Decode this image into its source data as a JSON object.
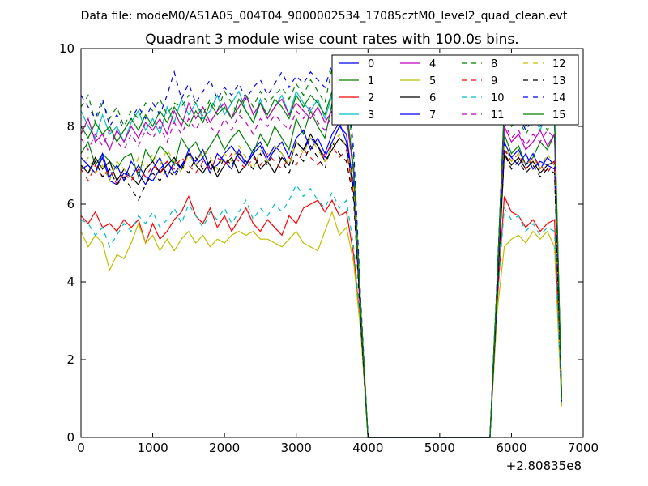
{
  "chart_data": {
    "type": "line",
    "suptitle": "Data file: modeM0/AS1A05_004T04_9000002534_17085cztM0_level2_quad_clean.evt",
    "title": "Quadrant 3 module wise count rates with 100.0s bins.",
    "xlabel": "",
    "ylabel": "",
    "x_offset_label": "+2.80835e8",
    "xlim": [
      0,
      7000
    ],
    "ylim": [
      0,
      10
    ],
    "xticks": [
      0,
      1000,
      2000,
      3000,
      4000,
      5000,
      6000,
      7000
    ],
    "yticks": [
      0,
      2,
      4,
      6,
      8,
      10
    ],
    "xtick_labels": [
      "0",
      "1000",
      "2000",
      "3000",
      "4000",
      "5000",
      "6000",
      "7000"
    ],
    "ytick_labels": [
      "0",
      "2",
      "4",
      "6",
      "8",
      "10"
    ],
    "grid": false,
    "legend_position": "top-right",
    "legend_columns": 4,
    "x": [
      0,
      100,
      200,
      300,
      400,
      500,
      600,
      700,
      800,
      900,
      1000,
      1100,
      1200,
      1300,
      1400,
      1500,
      1600,
      1700,
      1800,
      1900,
      2000,
      2100,
      2200,
      2300,
      2400,
      2500,
      2600,
      2700,
      2800,
      2900,
      3000,
      3100,
      3200,
      3300,
      3400,
      3500,
      3600,
      3700,
      3800,
      3900,
      4000,
      5700,
      5800,
      5900,
      6000,
      6100,
      6200,
      6300,
      6400,
      6500,
      6600,
      6700
    ],
    "series": [
      {
        "name": "0",
        "color": "#0000ff",
        "dashed": false,
        "values": [
          6.9,
          7.0,
          6.8,
          7.2,
          6.6,
          6.5,
          6.8,
          6.7,
          7.0,
          6.7,
          6.6,
          6.9,
          7.1,
          6.8,
          7.0,
          7.3,
          7.1,
          7.4,
          6.9,
          7.0,
          7.3,
          7.5,
          7.2,
          7.0,
          7.4,
          7.6,
          7.2,
          7.5,
          7.3,
          7.0,
          7.6,
          7.4,
          7.7,
          7.5,
          7.2,
          7.6,
          8.0,
          7.8,
          6.4,
          3.1,
          0,
          0,
          3.8,
          7.4,
          7.2,
          7.0,
          7.3,
          6.9,
          7.1,
          7.0,
          6.9,
          0.9
        ]
      },
      {
        "name": "1",
        "color": "#008000",
        "dashed": false,
        "values": [
          7.3,
          7.6,
          7.0,
          7.3,
          7.1,
          6.9,
          7.2,
          7.3,
          6.7,
          7.4,
          7.1,
          7.5,
          7.3,
          7.0,
          7.7,
          7.4,
          7.6,
          7.2,
          7.5,
          7.8,
          7.4,
          7.7,
          7.9,
          7.6,
          7.3,
          7.8,
          7.5,
          8.0,
          7.7,
          7.4,
          8.2,
          7.8,
          8.4,
          8.0,
          7.7,
          8.6,
          8.1,
          8.3,
          6.8,
          3.2,
          0,
          0,
          3.9,
          7.8,
          7.3,
          7.5,
          7.0,
          7.2,
          7.6,
          7.4,
          7.8,
          1.0
        ]
      },
      {
        "name": "2",
        "color": "#ff0000",
        "dashed": false,
        "values": [
          5.7,
          5.5,
          5.8,
          5.4,
          5.5,
          5.3,
          5.6,
          5.4,
          5.6,
          5.0,
          5.5,
          5.1,
          5.3,
          5.6,
          5.8,
          6.2,
          5.7,
          5.5,
          5.9,
          5.4,
          5.7,
          5.3,
          5.6,
          5.9,
          5.5,
          5.3,
          5.6,
          5.4,
          5.2,
          5.7,
          5.5,
          5.9,
          6.0,
          6.1,
          5.8,
          6.1,
          5.7,
          5.8,
          4.7,
          2.8,
          0,
          0,
          3.4,
          6.2,
          5.8,
          5.7,
          5.4,
          5.6,
          5.3,
          5.5,
          5.6,
          0.9
        ]
      },
      {
        "name": "3",
        "color": "#00bfbf",
        "dashed": false,
        "values": [
          8.4,
          8.0,
          7.7,
          8.3,
          7.8,
          8.0,
          7.6,
          8.1,
          8.4,
          7.9,
          8.2,
          7.8,
          8.5,
          8.1,
          8.7,
          8.3,
          8.6,
          8.2,
          8.4,
          8.8,
          8.3,
          8.6,
          8.9,
          8.4,
          8.1,
          8.7,
          8.2,
          8.5,
          8.8,
          8.3,
          8.9,
          8.6,
          8.4,
          8.7,
          8.2,
          8.8,
          8.5,
          8.3,
          6.9,
          3.3,
          0,
          0,
          4.0,
          8.6,
          8.2,
          8.4,
          8.0,
          8.3,
          7.9,
          8.4,
          8.1,
          1.0
        ]
      },
      {
        "name": "4",
        "color": "#bf00bf",
        "dashed": false,
        "values": [
          7.8,
          8.2,
          7.6,
          7.8,
          7.4,
          7.9,
          7.6,
          8.0,
          7.7,
          8.1,
          7.9,
          8.2,
          7.8,
          8.4,
          8.0,
          8.6,
          8.2,
          8.5,
          8.1,
          8.4,
          8.6,
          8.2,
          8.5,
          8.8,
          8.3,
          8.6,
          8.2,
          8.5,
          8.7,
          8.3,
          8.6,
          8.4,
          8.2,
          8.5,
          8.1,
          8.4,
          8.7,
          8.3,
          6.8,
          3.2,
          0,
          0,
          3.9,
          8.0,
          7.6,
          7.8,
          7.4,
          7.6,
          7.9,
          7.5,
          7.8,
          1.0
        ]
      },
      {
        "name": "5",
        "color": "#bfbf00",
        "dashed": false,
        "values": [
          5.3,
          4.9,
          5.2,
          5.0,
          4.3,
          4.7,
          4.6,
          5.0,
          5.5,
          5.0,
          5.2,
          4.8,
          5.1,
          4.8,
          5.1,
          5.3,
          5.0,
          5.2,
          4.9,
          5.1,
          5.0,
          5.2,
          5.3,
          5.2,
          5.3,
          5.1,
          5.1,
          5.0,
          4.9,
          5.1,
          5.3,
          5.0,
          4.9,
          4.8,
          5.3,
          5.8,
          5.2,
          5.4,
          4.5,
          2.7,
          0,
          0,
          3.2,
          4.9,
          5.1,
          5.2,
          5.0,
          5.3,
          5.1,
          5.3,
          4.9,
          0.8
        ]
      },
      {
        "name": "6",
        "color": "#000000",
        "dashed": false,
        "values": [
          7.0,
          6.8,
          7.2,
          6.9,
          7.1,
          6.6,
          6.9,
          6.7,
          6.5,
          6.9,
          7.1,
          6.8,
          7.0,
          7.2,
          6.9,
          7.3,
          7.0,
          6.8,
          7.1,
          6.7,
          7.0,
          7.2,
          6.8,
          7.0,
          7.3,
          6.9,
          7.1,
          6.8,
          7.2,
          7.0,
          7.6,
          7.4,
          7.8,
          7.5,
          7.1,
          7.4,
          7.7,
          7.5,
          6.3,
          3.0,
          0,
          0,
          3.6,
          7.3,
          7.0,
          7.2,
          6.9,
          7.1,
          6.8,
          7.0,
          7.1,
          1.0
        ]
      },
      {
        "name": "7",
        "color": "#0000ff",
        "dashed": false,
        "values": [
          7.2,
          7.0,
          6.8,
          7.3,
          6.7,
          7.0,
          6.6,
          7.1,
          6.8,
          6.5,
          6.9,
          7.2,
          6.7,
          7.1,
          6.9,
          7.4,
          7.0,
          7.2,
          6.8,
          7.3,
          7.1,
          6.9,
          7.4,
          7.0,
          7.3,
          7.5,
          7.1,
          7.4,
          7.6,
          7.2,
          7.7,
          7.9,
          7.4,
          7.7,
          7.3,
          7.8,
          8.1,
          7.6,
          6.5,
          3.1,
          0,
          0,
          3.7,
          7.6,
          7.2,
          7.4,
          7.0,
          7.3,
          6.9,
          7.2,
          7.0,
          0.9
        ]
      },
      {
        "name": "8",
        "color": "#008000",
        "dashed": true,
        "values": [
          8.5,
          8.8,
          8.1,
          8.6,
          8.2,
          8.5,
          8.0,
          8.4,
          8.2,
          8.6,
          8.4,
          8.7,
          8.3,
          8.6,
          8.5,
          8.8,
          8.6,
          8.3,
          8.7,
          8.4,
          8.9,
          8.6,
          8.3,
          8.8,
          8.5,
          8.9,
          8.6,
          8.8,
          9.0,
          8.7,
          9.1,
          8.8,
          9.2,
          8.9,
          8.6,
          9.5,
          9.3,
          9.0,
          7.2,
          3.4,
          0,
          0,
          4.1,
          8.4,
          8.0,
          8.2,
          7.8,
          8.1,
          8.3,
          7.9,
          8.2,
          1.0
        ]
      },
      {
        "name": "9",
        "color": "#ff0000",
        "dashed": true,
        "values": [
          6.9,
          6.6,
          7.0,
          6.7,
          6.9,
          6.5,
          6.8,
          6.6,
          6.9,
          6.7,
          7.0,
          6.8,
          7.1,
          6.9,
          7.2,
          7.0,
          6.8,
          7.1,
          6.9,
          7.2,
          7.0,
          7.3,
          7.1,
          6.9,
          7.2,
          7.0,
          7.3,
          7.1,
          6.9,
          7.2,
          7.0,
          7.4,
          7.2,
          7.0,
          7.3,
          7.5,
          7.2,
          7.4,
          6.2,
          3.0,
          0,
          0,
          3.6,
          7.4,
          7.1,
          7.3,
          6.9,
          7.2,
          7.0,
          6.8,
          7.1,
          0.9
        ]
      },
      {
        "name": "10",
        "color": "#00bfbf",
        "dashed": true,
        "values": [
          5.6,
          5.5,
          5.2,
          5.4,
          4.9,
          5.2,
          5.5,
          5.3,
          5.7,
          5.5,
          5.8,
          5.4,
          5.6,
          5.9,
          5.5,
          6.0,
          5.7,
          5.4,
          5.8,
          5.6,
          5.9,
          5.5,
          5.8,
          6.1,
          5.6,
          5.9,
          5.7,
          6.0,
          5.8,
          6.1,
          6.5,
          6.2,
          6.4,
          6.1,
          5.9,
          6.3,
          5.9,
          6.1,
          4.9,
          2.9,
          0,
          0,
          3.5,
          5.9,
          5.6,
          5.7,
          5.3,
          5.5,
          5.2,
          5.4,
          5.3,
          0.9
        ]
      },
      {
        "name": "11",
        "color": "#bf00bf",
        "dashed": true,
        "values": [
          7.7,
          7.4,
          7.8,
          7.5,
          7.9,
          7.6,
          7.4,
          7.8,
          7.5,
          7.9,
          7.7,
          8.0,
          7.6,
          8.1,
          7.8,
          8.2,
          7.9,
          8.3,
          8.0,
          7.8,
          8.2,
          7.9,
          8.3,
          8.1,
          7.8,
          8.2,
          8.0,
          8.3,
          8.1,
          7.9,
          8.4,
          8.2,
          8.5,
          8.1,
          7.9,
          8.3,
          8.6,
          8.2,
          6.8,
          3.2,
          0,
          0,
          3.9,
          8.1,
          7.7,
          7.9,
          7.5,
          7.8,
          7.6,
          7.9,
          7.7,
          1.0
        ]
      },
      {
        "name": "12",
        "color": "#bfbf00",
        "dashed": true,
        "values": [
          6.9,
          7.2,
          6.8,
          7.0,
          6.6,
          7.1,
          6.9,
          6.7,
          7.2,
          6.9,
          7.3,
          7.0,
          7.4,
          7.1,
          6.8,
          7.3,
          7.0,
          7.4,
          7.2,
          6.9,
          7.3,
          7.1,
          7.5,
          7.2,
          6.9,
          7.4,
          7.1,
          7.5,
          7.3,
          7.0,
          7.6,
          7.3,
          7.7,
          7.4,
          7.1,
          7.5,
          7.8,
          7.5,
          6.4,
          3.0,
          0,
          0,
          3.7,
          7.5,
          7.1,
          7.3,
          7.0,
          7.2,
          6.9,
          7.3,
          7.0,
          0.9
        ]
      },
      {
        "name": "13",
        "color": "#000000",
        "dashed": true,
        "values": [
          7.0,
          6.8,
          7.1,
          6.7,
          6.9,
          6.5,
          6.7,
          6.4,
          6.1,
          6.5,
          6.8,
          6.6,
          6.9,
          6.7,
          7.0,
          6.8,
          7.2,
          6.9,
          7.1,
          6.8,
          7.2,
          7.0,
          7.3,
          7.1,
          6.9,
          7.3,
          7.0,
          7.4,
          7.1,
          6.8,
          7.3,
          7.1,
          7.5,
          7.2,
          6.9,
          7.6,
          7.3,
          7.1,
          6.1,
          2.9,
          0,
          0,
          3.6,
          7.3,
          6.9,
          7.1,
          6.8,
          7.0,
          6.7,
          6.9,
          6.8,
          0.9
        ]
      },
      {
        "name": "14",
        "color": "#0000ff",
        "dashed": true,
        "values": [
          8.8,
          8.5,
          8.2,
          8.7,
          8.0,
          8.3,
          7.9,
          8.2,
          8.5,
          8.2,
          8.6,
          8.3,
          8.8,
          9.4,
          8.7,
          9.1,
          8.6,
          8.9,
          9.2,
          8.7,
          9.0,
          8.8,
          9.1,
          8.7,
          9.0,
          9.2,
          8.8,
          9.1,
          9.4,
          9.0,
          9.3,
          9.1,
          9.4,
          9.2,
          9.0,
          9.6,
          9.8,
          9.3,
          7.4,
          3.5,
          0,
          0,
          4.1,
          8.5,
          8.1,
          8.3,
          7.9,
          8.2,
          8.0,
          8.3,
          8.1,
          1.0
        ]
      },
      {
        "name": "15",
        "color": "#008000",
        "dashed": false,
        "values": [
          8.0,
          7.7,
          8.1,
          7.8,
          8.0,
          7.6,
          7.9,
          8.2,
          7.9,
          8.3,
          8.0,
          8.4,
          8.1,
          8.5,
          8.2,
          8.0,
          8.4,
          8.1,
          8.6,
          8.3,
          8.5,
          8.2,
          8.7,
          8.4,
          8.1,
          8.6,
          8.3,
          8.7,
          8.5,
          8.2,
          8.8,
          8.5,
          8.8,
          8.6,
          8.3,
          8.9,
          8.7,
          8.5,
          6.9,
          3.3,
          0,
          0,
          4.0,
          8.5,
          8.2,
          8.4,
          8.0,
          8.2,
          8.5,
          8.1,
          8.4,
          1.0
        ]
      }
    ]
  }
}
